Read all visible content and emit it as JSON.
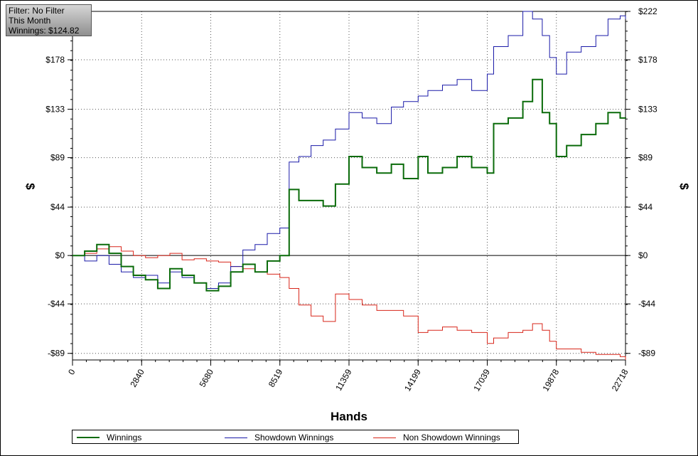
{
  "info_box": {
    "filter": "Filter: No Filter",
    "period": "This Month",
    "winnings": "Winnings: $124.82"
  },
  "legend": {
    "items": [
      {
        "label": "Winnings",
        "color": "#0a6b0a"
      },
      {
        "label": "Showdown Winnings",
        "color": "#1a1aa8"
      },
      {
        "label": "Non Showdown Winnings",
        "color": "#d8261a"
      }
    ]
  },
  "chart_data": {
    "type": "line",
    "xlabel": "Hands",
    "ylabel": "$",
    "xlim": [
      0,
      22718
    ],
    "ylim": [
      -95,
      222
    ],
    "x_ticks": [
      "0",
      "2840",
      "5680",
      "8519",
      "11359",
      "14199",
      "17039",
      "19878",
      "22718"
    ],
    "y_ticks": [
      {
        "value": 222,
        "label": "$222"
      },
      {
        "value": 178,
        "label": "$178"
      },
      {
        "value": 133,
        "label": "$133"
      },
      {
        "value": 89,
        "label": "$89"
      },
      {
        "value": 44,
        "label": "$44"
      },
      {
        "value": 0,
        "label": "$0"
      },
      {
        "value": -44,
        "label": "-$44"
      },
      {
        "value": -89,
        "label": "-$89"
      }
    ],
    "grid": true,
    "legend_position": "bottom",
    "series": [
      {
        "name": "Winnings",
        "color": "#0a6b0a",
        "x": [
          0,
          500,
          1000,
          1500,
          2000,
          2500,
          3000,
          3500,
          4000,
          4500,
          5000,
          5500,
          6000,
          6500,
          7000,
          7500,
          8000,
          8519,
          8900,
          9300,
          9800,
          10300,
          10800,
          11359,
          11900,
          12500,
          13100,
          13600,
          14199,
          14600,
          15200,
          15800,
          16400,
          17039,
          17300,
          17900,
          18500,
          18900,
          19300,
          19600,
          19878,
          20300,
          20900,
          21500,
          22000,
          22500,
          22718
        ],
        "y": [
          0,
          4,
          10,
          2,
          -10,
          -18,
          -22,
          -30,
          -12,
          -18,
          -25,
          -32,
          -28,
          -15,
          -8,
          -15,
          -5,
          0,
          60,
          50,
          50,
          45,
          65,
          90,
          80,
          75,
          83,
          70,
          90,
          75,
          80,
          90,
          80,
          75,
          120,
          125,
          140,
          160,
          130,
          120,
          90,
          100,
          110,
          120,
          130,
          125,
          124.82
        ]
      },
      {
        "name": "Showdown Winnings",
        "color": "#1a1aa8",
        "x": [
          0,
          500,
          1000,
          1500,
          2000,
          2500,
          3000,
          3500,
          4000,
          4500,
          5000,
          5500,
          6000,
          6500,
          7000,
          7500,
          8000,
          8519,
          8900,
          9300,
          9800,
          10300,
          10800,
          11359,
          11900,
          12500,
          13100,
          13600,
          14199,
          14600,
          15200,
          15800,
          16400,
          17039,
          17300,
          17900,
          18500,
          18900,
          19300,
          19600,
          19878,
          20300,
          20900,
          21500,
          22000,
          22500,
          22718
        ],
        "y": [
          0,
          -5,
          0,
          -8,
          -15,
          -20,
          -18,
          -25,
          -15,
          -20,
          -25,
          -30,
          -25,
          -10,
          5,
          10,
          20,
          25,
          85,
          90,
          100,
          105,
          115,
          130,
          125,
          120,
          135,
          140,
          145,
          150,
          155,
          160,
          150,
          165,
          190,
          200,
          222,
          215,
          200,
          180,
          165,
          185,
          190,
          200,
          215,
          218,
          215
        ]
      },
      {
        "name": "Non Showdown Winnings",
        "color": "#d8261a",
        "x": [
          0,
          500,
          1000,
          1500,
          2000,
          2500,
          3000,
          3500,
          4000,
          4500,
          5000,
          5500,
          6000,
          6500,
          7000,
          7500,
          8000,
          8519,
          8900,
          9300,
          9800,
          10300,
          10800,
          11359,
          11900,
          12500,
          13100,
          13600,
          14199,
          14600,
          15200,
          15800,
          16400,
          17039,
          17300,
          17900,
          18500,
          18900,
          19300,
          19600,
          19878,
          20300,
          20900,
          21500,
          22000,
          22500,
          22718
        ],
        "y": [
          0,
          2,
          6,
          8,
          4,
          0,
          -2,
          0,
          2,
          -4,
          -3,
          -5,
          -6,
          -10,
          -12,
          -15,
          -17,
          -20,
          -30,
          -45,
          -55,
          -60,
          -35,
          -40,
          -45,
          -50,
          -50,
          -55,
          -70,
          -68,
          -65,
          -68,
          -70,
          -80,
          -75,
          -70,
          -68,
          -62,
          -68,
          -78,
          -85,
          -85,
          -88,
          -90,
          -90,
          -92,
          -95
        ]
      }
    ]
  }
}
